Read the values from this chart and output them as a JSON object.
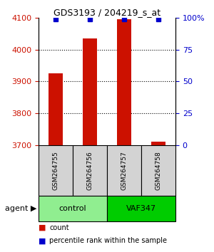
{
  "title": "GDS3193 / 204219_s_at",
  "samples": [
    "GSM264755",
    "GSM264756",
    "GSM264757",
    "GSM264758"
  ],
  "count_values": [
    3925,
    4035,
    4095,
    3710
  ],
  "percentile_values": [
    99,
    99,
    99,
    99
  ],
  "ylim_left": [
    3700,
    4100
  ],
  "ylim_right": [
    0,
    100
  ],
  "yticks_left": [
    3700,
    3800,
    3900,
    4000,
    4100
  ],
  "yticks_right": [
    0,
    25,
    50,
    75,
    100
  ],
  "groups": [
    {
      "label": "control",
      "samples": [
        0,
        1
      ],
      "color": "#90EE90"
    },
    {
      "label": "VAF347",
      "samples": [
        2,
        3
      ],
      "color": "#00CC00"
    }
  ],
  "bar_color": "#CC1100",
  "dot_color": "#0000CC",
  "title_color": "black",
  "left_tick_color": "#CC1100",
  "right_tick_color": "#0000CC",
  "bar_width": 0.4,
  "legend_count_color": "#CC1100",
  "legend_pct_color": "#0000CC",
  "agent_label": "agent",
  "xlabel_sample_rotation": -90
}
